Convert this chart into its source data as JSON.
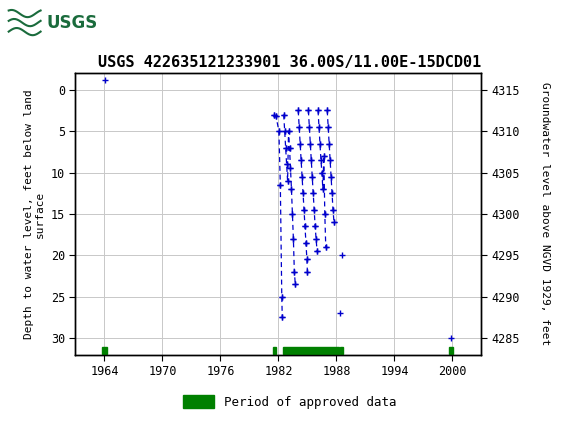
{
  "title": "USGS 422635121233901 36.00S/11.00E-15DCD01",
  "ylabel_left": "Depth to water level, feet below land\nsurface",
  "ylabel_right": "Groundwater level above NGVD 1929, feet",
  "xlim": [
    1961,
    2003
  ],
  "ylim_left_top": -2,
  "ylim_left_bottom": 32,
  "ylim_right_top": 4317,
  "ylim_right_bottom": 4283,
  "xticks": [
    1964,
    1970,
    1976,
    1982,
    1988,
    1994,
    2000
  ],
  "yticks_left": [
    0,
    5,
    10,
    15,
    20,
    25,
    30
  ],
  "yticks_right": [
    4315,
    4310,
    4305,
    4300,
    4295,
    4290,
    4285
  ],
  "background_color": "#ffffff",
  "plot_bg_color": "#ffffff",
  "header_color": "#1a6b3c",
  "grid_color": "#c8c8c8",
  "data_color": "#0000cc",
  "approved_color": "#008000",
  "title_fontsize": 11,
  "dashed_segments": [
    {
      "x": [
        1981.55,
        1981.75,
        1982.05,
        1982.2,
        1982.35,
        1982.4
      ],
      "y": [
        3.0,
        3.2,
        5.0,
        11.5,
        25.0,
        27.5
      ]
    },
    {
      "x": [
        1982.55,
        1982.65,
        1982.75,
        1982.85,
        1982.95,
        1983.05,
        1983.15,
        1983.25,
        1983.35,
        1983.45,
        1983.55,
        1983.65,
        1983.75
      ],
      "y": [
        3.0,
        5.0,
        7.0,
        9.0,
        11.0,
        5.0,
        7.0,
        9.5,
        12.0,
        15.0,
        18.0,
        22.0,
        23.5
      ]
    },
    {
      "x": [
        1984.05,
        1984.15,
        1984.25,
        1984.35,
        1984.45,
        1984.55,
        1984.65,
        1984.75,
        1984.85,
        1984.95,
        1985.0
      ],
      "y": [
        2.5,
        4.5,
        6.5,
        8.5,
        10.5,
        12.5,
        14.5,
        16.5,
        18.5,
        20.5,
        22.0
      ]
    },
    {
      "x": [
        1985.1,
        1985.2,
        1985.3,
        1985.4,
        1985.5,
        1985.6,
        1985.7,
        1985.8,
        1985.9,
        1986.0
      ],
      "y": [
        2.5,
        4.5,
        6.5,
        8.5,
        10.5,
        12.5,
        14.5,
        16.5,
        18.0,
        19.5
      ]
    },
    {
      "x": [
        1986.1,
        1986.2,
        1986.3,
        1986.4,
        1986.5,
        1986.6,
        1986.7,
        1986.8,
        1986.9
      ],
      "y": [
        2.5,
        4.5,
        6.5,
        8.5,
        10.0,
        12.0,
        8.0,
        15.0,
        19.0
      ]
    },
    {
      "x": [
        1987.05,
        1987.15,
        1987.25,
        1987.35,
        1987.45,
        1987.55,
        1987.65,
        1987.75
      ],
      "y": [
        2.5,
        4.5,
        6.5,
        8.5,
        10.5,
        12.5,
        14.5,
        16.0
      ]
    }
  ],
  "scatter_points": [
    [
      1964.05,
      -1.2
    ],
    [
      1981.55,
      3.0
    ],
    [
      1981.75,
      3.2
    ],
    [
      1982.05,
      5.0
    ],
    [
      1982.2,
      11.5
    ],
    [
      1982.35,
      25.0
    ],
    [
      1982.4,
      27.5
    ],
    [
      1982.55,
      3.0
    ],
    [
      1982.65,
      5.0
    ],
    [
      1982.75,
      7.0
    ],
    [
      1982.85,
      9.0
    ],
    [
      1982.95,
      11.0
    ],
    [
      1983.05,
      5.0
    ],
    [
      1983.15,
      7.0
    ],
    [
      1983.25,
      9.5
    ],
    [
      1983.35,
      12.0
    ],
    [
      1983.45,
      15.0
    ],
    [
      1983.55,
      18.0
    ],
    [
      1983.65,
      22.0
    ],
    [
      1983.75,
      23.5
    ],
    [
      1984.05,
      2.5
    ],
    [
      1984.15,
      4.5
    ],
    [
      1984.25,
      6.5
    ],
    [
      1984.35,
      8.5
    ],
    [
      1984.45,
      10.5
    ],
    [
      1984.55,
      12.5
    ],
    [
      1984.65,
      14.5
    ],
    [
      1984.75,
      16.5
    ],
    [
      1984.85,
      18.5
    ],
    [
      1984.95,
      20.5
    ],
    [
      1985.0,
      22.0
    ],
    [
      1985.1,
      2.5
    ],
    [
      1985.2,
      4.5
    ],
    [
      1985.3,
      6.5
    ],
    [
      1985.4,
      8.5
    ],
    [
      1985.5,
      10.5
    ],
    [
      1985.6,
      12.5
    ],
    [
      1985.7,
      14.5
    ],
    [
      1985.8,
      16.5
    ],
    [
      1985.9,
      18.0
    ],
    [
      1986.0,
      19.5
    ],
    [
      1986.1,
      2.5
    ],
    [
      1986.2,
      4.5
    ],
    [
      1986.3,
      6.5
    ],
    [
      1986.4,
      8.5
    ],
    [
      1986.5,
      10.0
    ],
    [
      1986.6,
      12.0
    ],
    [
      1986.7,
      8.0
    ],
    [
      1986.8,
      15.0
    ],
    [
      1986.9,
      19.0
    ],
    [
      1987.05,
      2.5
    ],
    [
      1987.15,
      4.5
    ],
    [
      1987.25,
      6.5
    ],
    [
      1987.35,
      8.5
    ],
    [
      1987.45,
      10.5
    ],
    [
      1987.55,
      12.5
    ],
    [
      1987.65,
      14.5
    ],
    [
      1987.75,
      16.0
    ],
    [
      1988.35,
      27.0
    ],
    [
      1988.6,
      20.0
    ],
    [
      1999.85,
      30.0
    ]
  ],
  "approved_periods": [
    [
      1963.7,
      1964.3
    ],
    [
      1981.45,
      1981.8
    ],
    [
      1982.45,
      1988.25
    ],
    [
      1988.4,
      1988.7
    ],
    [
      1999.6,
      2000.1
    ]
  ]
}
